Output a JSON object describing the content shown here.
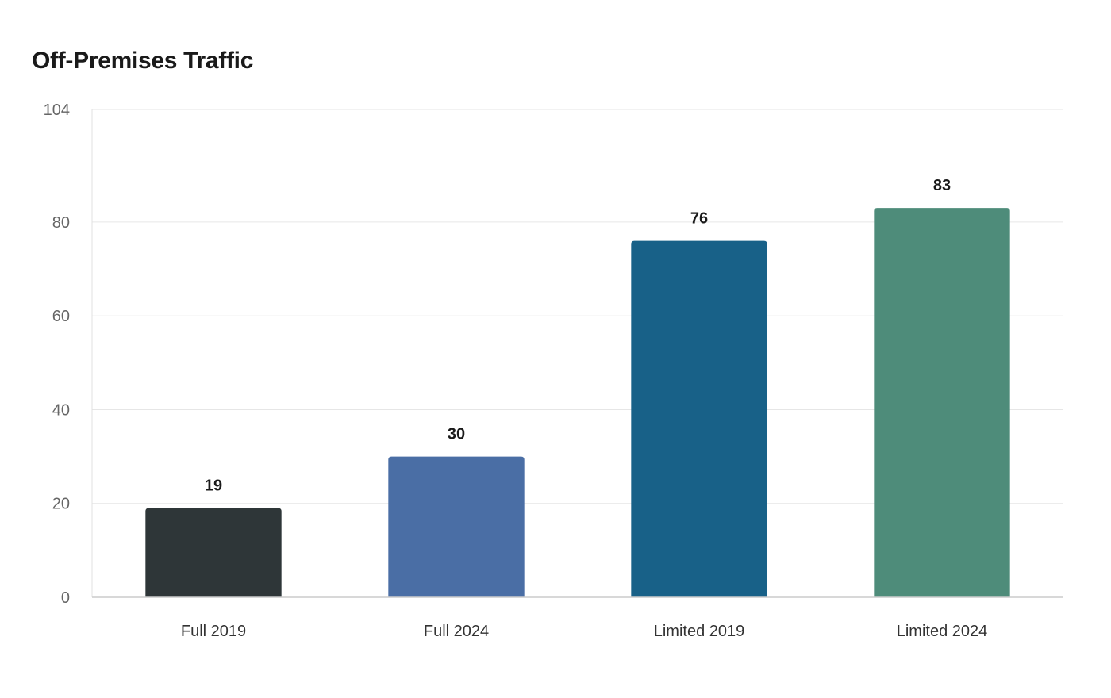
{
  "chart_data": {
    "type": "bar",
    "title": "Off-Premises Traffic",
    "xlabel": "",
    "ylabel": "",
    "categories": [
      "Full 2019",
      "Full 2024",
      "Limited 2019",
      "Limited 2024"
    ],
    "values": [
      19,
      30,
      76,
      83
    ],
    "value_labels": [
      "19",
      "30",
      "76",
      "83"
    ],
    "colors": [
      "#2e3638",
      "#4a6ea5",
      "#186188",
      "#4e8c7a"
    ],
    "ylim": [
      0,
      104
    ],
    "yticks": [
      0,
      20,
      40,
      60,
      80,
      104
    ],
    "grid": true,
    "legend": "none"
  }
}
